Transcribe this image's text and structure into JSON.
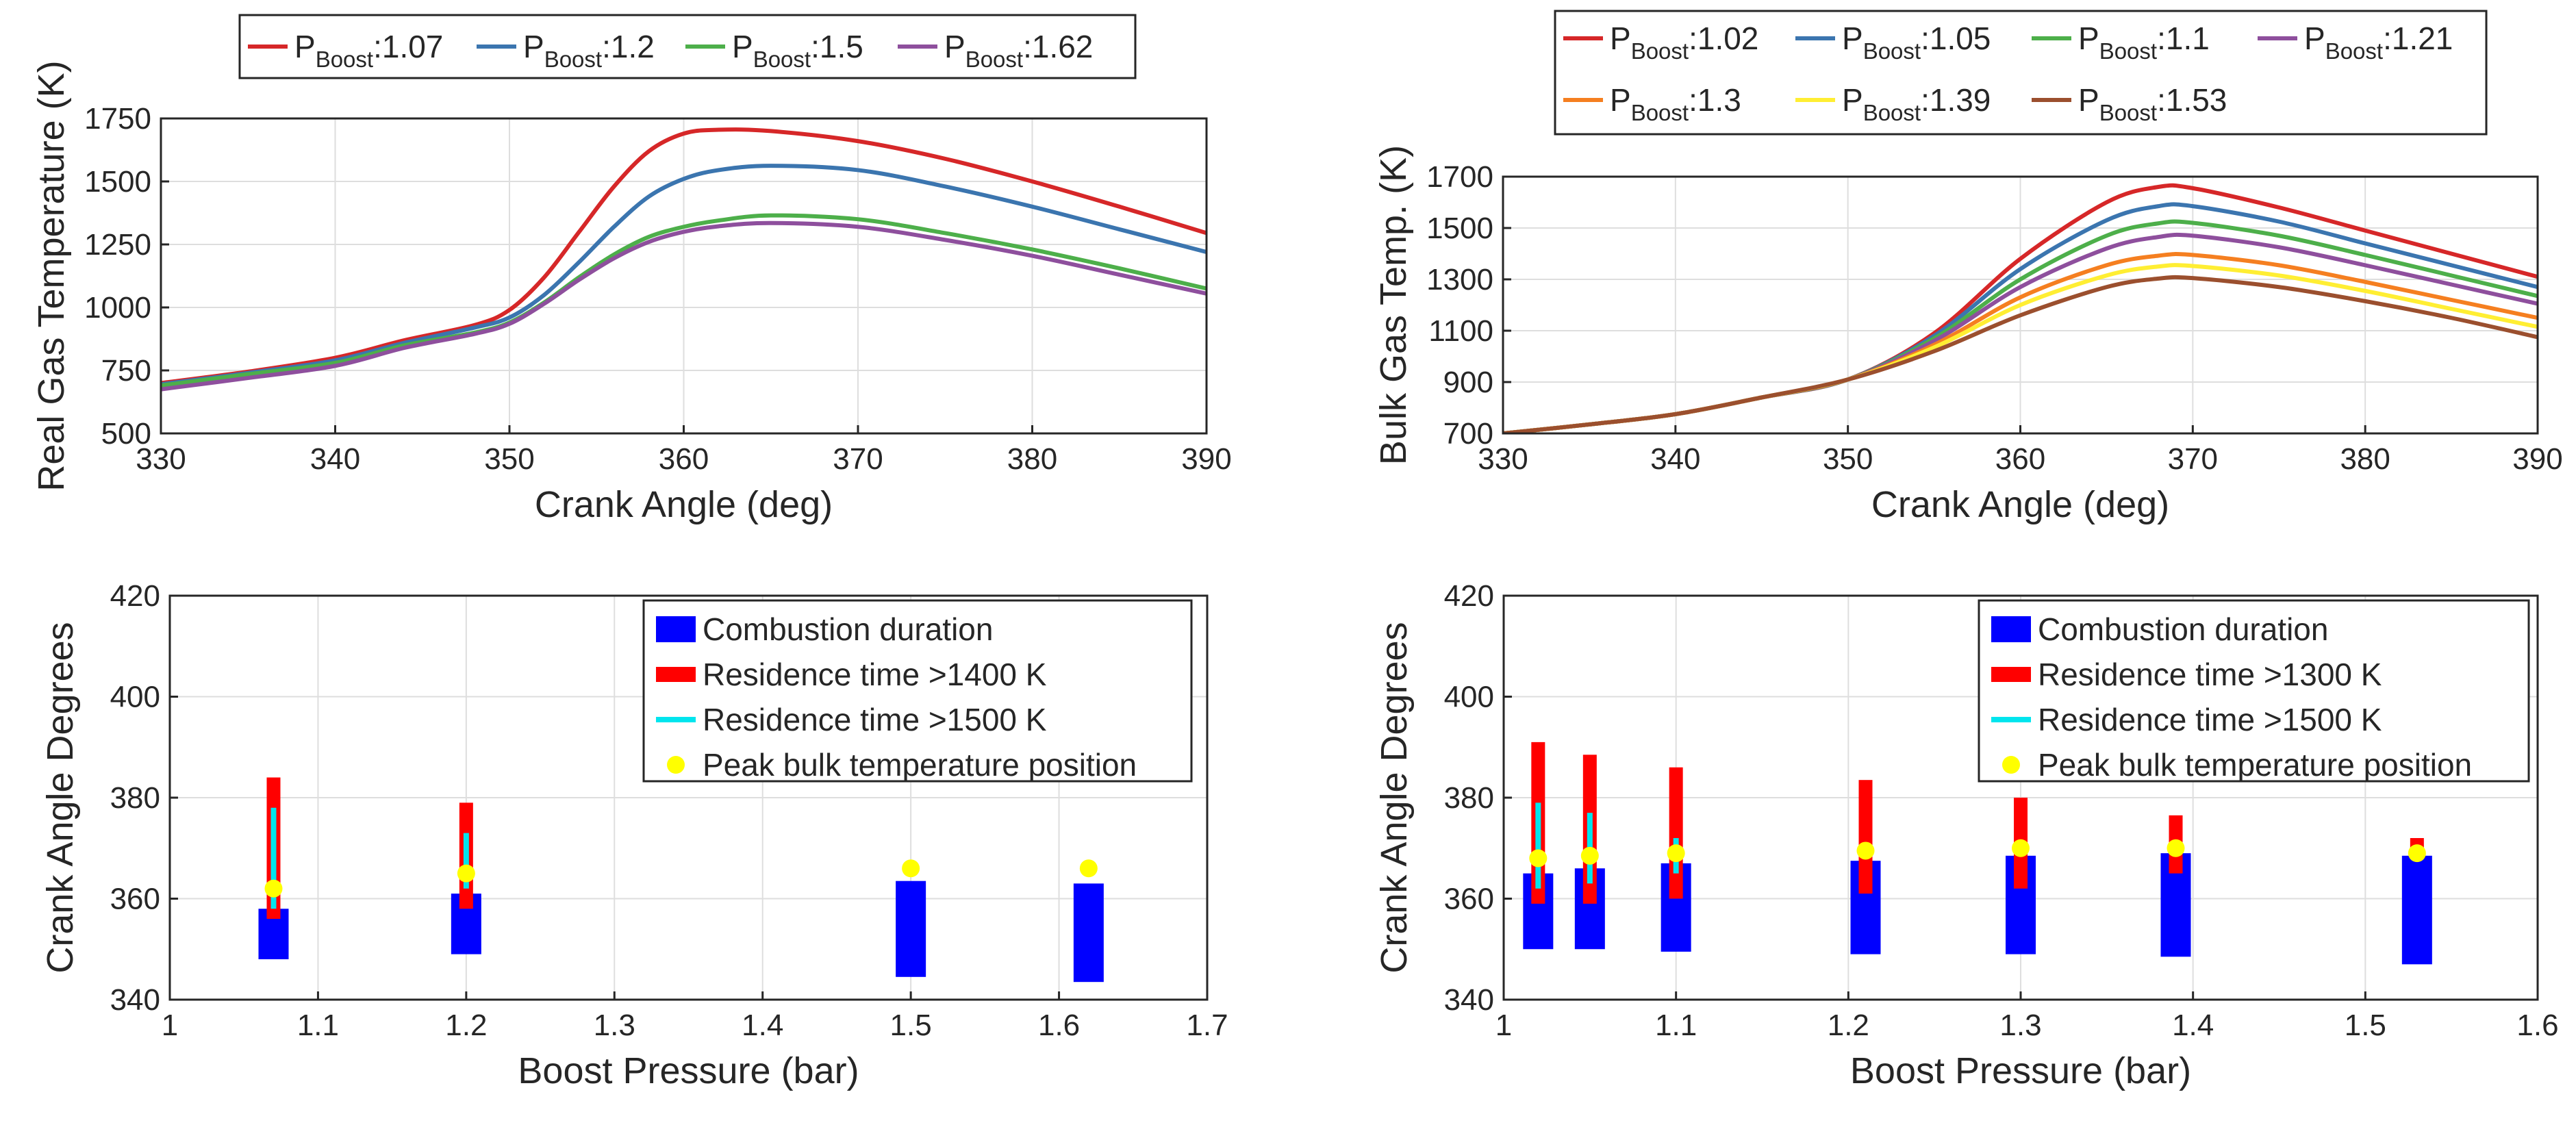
{
  "chart_data": [
    {
      "type": "line",
      "panel": "top-left",
      "xlabel": "Crank Angle (deg)",
      "ylabel": "Real Gas Temperature (K)",
      "xlim": [
        330,
        390
      ],
      "ylim": [
        500,
        1750
      ],
      "xticks": [
        330,
        340,
        350,
        360,
        370,
        380,
        390
      ],
      "yticks": [
        500,
        750,
        1000,
        1250,
        1500,
        1750
      ],
      "grid": true,
      "legend": {
        "placement": "top-outside",
        "prefix": "P",
        "subscript": "Boost"
      },
      "series": [
        {
          "name": ":1.07",
          "color": "#d62728",
          "x": [
            330,
            335,
            340,
            344,
            348,
            350,
            352,
            354,
            356,
            358,
            360,
            362,
            365,
            370,
            375,
            380,
            385,
            390
          ],
          "y": [
            700,
            745,
            800,
            870,
            930,
            990,
            1120,
            1300,
            1480,
            1620,
            1690,
            1705,
            1700,
            1660,
            1590,
            1500,
            1400,
            1295
          ]
        },
        {
          "name": ":1.2",
          "color": "#3b75af",
          "x": [
            330,
            335,
            340,
            344,
            348,
            350,
            352,
            354,
            356,
            358,
            360,
            362,
            365,
            370,
            375,
            380,
            385,
            390
          ],
          "y": [
            695,
            740,
            790,
            860,
            920,
            960,
            1050,
            1180,
            1320,
            1440,
            1510,
            1545,
            1562,
            1545,
            1480,
            1400,
            1310,
            1220
          ]
        },
        {
          "name": ":1.5",
          "color": "#4daf4a",
          "x": [
            330,
            335,
            340,
            344,
            348,
            350,
            352,
            354,
            356,
            358,
            360,
            362,
            365,
            370,
            375,
            380,
            385,
            390
          ],
          "y": [
            690,
            735,
            780,
            850,
            900,
            940,
            1020,
            1120,
            1210,
            1280,
            1320,
            1345,
            1365,
            1350,
            1295,
            1230,
            1155,
            1075
          ]
        },
        {
          "name": ":1.62",
          "color": "#8e4f9d",
          "x": [
            330,
            335,
            340,
            344,
            348,
            350,
            352,
            354,
            356,
            358,
            360,
            362,
            365,
            370,
            375,
            380,
            385,
            390
          ],
          "y": [
            675,
            720,
            768,
            840,
            895,
            935,
            1015,
            1110,
            1195,
            1260,
            1300,
            1322,
            1335,
            1320,
            1268,
            1205,
            1130,
            1055
          ]
        }
      ]
    },
    {
      "type": "line",
      "panel": "top-right",
      "xlabel": "Crank Angle (deg)",
      "ylabel": "Bulk Gas Temp. (K)",
      "xlim": [
        330,
        390
      ],
      "ylim": [
        700,
        1700
      ],
      "xticks": [
        330,
        340,
        350,
        360,
        370,
        380,
        390
      ],
      "yticks": [
        700,
        900,
        1100,
        1300,
        1500,
        1700
      ],
      "grid": true,
      "legend": {
        "placement": "top-outside",
        "prefix": "P",
        "subscript": "Boost"
      },
      "series": [
        {
          "name": ":1.02",
          "color": "#d62728",
          "x": [
            330,
            335,
            340,
            345,
            350,
            355,
            360,
            365,
            368,
            370,
            375,
            380,
            385,
            390
          ],
          "y": [
            700,
            735,
            775,
            840,
            910,
            1090,
            1380,
            1600,
            1660,
            1655,
            1580,
            1490,
            1400,
            1310
          ]
        },
        {
          "name": ":1.05",
          "color": "#3b75af",
          "x": [
            330,
            335,
            340,
            345,
            350,
            355,
            360,
            365,
            368,
            370,
            375,
            380,
            385,
            390
          ],
          "y": [
            700,
            735,
            775,
            840,
            910,
            1080,
            1340,
            1530,
            1585,
            1585,
            1525,
            1440,
            1355,
            1270
          ]
        },
        {
          "name": ":1.1",
          "color": "#4daf4a",
          "x": [
            330,
            335,
            340,
            345,
            350,
            355,
            360,
            365,
            368,
            370,
            375,
            380,
            385,
            390
          ],
          "y": [
            700,
            735,
            775,
            840,
            910,
            1070,
            1300,
            1470,
            1518,
            1520,
            1470,
            1395,
            1315,
            1235
          ]
        },
        {
          "name": ":1.21",
          "color": "#8e4f9d",
          "x": [
            330,
            335,
            340,
            345,
            350,
            355,
            360,
            365,
            368,
            370,
            375,
            380,
            385,
            390
          ],
          "y": [
            700,
            735,
            775,
            840,
            910,
            1060,
            1270,
            1420,
            1465,
            1470,
            1425,
            1355,
            1280,
            1205
          ]
        },
        {
          "name": ":1.3",
          "color": "#f57f20",
          "x": [
            330,
            335,
            340,
            345,
            350,
            355,
            360,
            365,
            368,
            370,
            375,
            380,
            385,
            390
          ],
          "y": [
            700,
            735,
            775,
            840,
            910,
            1045,
            1230,
            1355,
            1392,
            1395,
            1355,
            1290,
            1220,
            1150
          ]
        },
        {
          "name": ":1.39",
          "color": "#ffee33",
          "x": [
            330,
            335,
            340,
            345,
            350,
            355,
            360,
            365,
            368,
            370,
            375,
            380,
            385,
            390
          ],
          "y": [
            700,
            735,
            775,
            840,
            910,
            1035,
            1200,
            1315,
            1350,
            1352,
            1315,
            1255,
            1185,
            1115
          ]
        },
        {
          "name": ":1.53",
          "color": "#9b4f2e",
          "x": [
            330,
            335,
            340,
            345,
            350,
            355,
            360,
            365,
            368,
            370,
            375,
            380,
            385,
            390
          ],
          "y": [
            700,
            735,
            775,
            840,
            910,
            1020,
            1160,
            1270,
            1303,
            1305,
            1270,
            1215,
            1150,
            1075
          ]
        }
      ]
    },
    {
      "type": "bar",
      "panel": "bottom-left",
      "xlabel": "Boost Pressure (bar)",
      "ylabel": "Crank Angle Degrees",
      "xlim": [
        1,
        1.7
      ],
      "ylim": [
        340,
        420
      ],
      "xticks": [
        1,
        1.1,
        1.2,
        1.3,
        1.4,
        1.5,
        1.6,
        1.7
      ],
      "yticks": [
        340,
        360,
        380,
        400,
        420
      ],
      "grid": true,
      "legend": {
        "placement": "top-right",
        "entries": [
          "Combustion duration",
          "Residence time >1400 K",
          "Residence time >1500 K",
          "Peak bulk temperature position"
        ]
      },
      "colors": {
        "combustion": "#0000ff",
        "res_low": "#ff0000",
        "res_high": "#00e5ee",
        "peak": "#ffff00"
      },
      "points": [
        {
          "p": 1.07,
          "combustion": [
            348,
            358
          ],
          "res_low": [
            356,
            384
          ],
          "res_high": [
            358,
            378
          ],
          "peak": 362
        },
        {
          "p": 1.2,
          "combustion": [
            349,
            361
          ],
          "res_low": [
            358,
            379
          ],
          "res_high": [
            362,
            373
          ],
          "peak": 365
        },
        {
          "p": 1.5,
          "combustion": [
            344.5,
            363.5
          ],
          "res_low": null,
          "res_high": null,
          "peak": 366
        },
        {
          "p": 1.62,
          "combustion": [
            343.5,
            363
          ],
          "res_low": null,
          "res_high": null,
          "peak": 366
        }
      ]
    },
    {
      "type": "bar",
      "panel": "bottom-right",
      "xlabel": "Boost Pressure (bar)",
      "ylabel": "Crank Angle Degrees",
      "xlim": [
        1,
        1.6
      ],
      "ylim": [
        340,
        420
      ],
      "xticks": [
        1,
        1.1,
        1.2,
        1.3,
        1.4,
        1.5,
        1.6
      ],
      "yticks": [
        340,
        360,
        380,
        400,
        420
      ],
      "grid": true,
      "legend": {
        "placement": "top-right",
        "entries": [
          "Combustion duration",
          "Residence time >1300 K",
          "Residence time >1500 K",
          "Peak bulk temperature position"
        ]
      },
      "colors": {
        "combustion": "#0000ff",
        "res_low": "#ff0000",
        "res_high": "#00e5ee",
        "peak": "#ffff00"
      },
      "points": [
        {
          "p": 1.02,
          "combustion": [
            350,
            365
          ],
          "res_low": [
            359,
            391
          ],
          "res_high": [
            362,
            379
          ],
          "peak": 368
        },
        {
          "p": 1.05,
          "combustion": [
            350,
            366
          ],
          "res_low": [
            359,
            388.5
          ],
          "res_high": [
            363,
            377
          ],
          "peak": 368.5
        },
        {
          "p": 1.1,
          "combustion": [
            349.5,
            367
          ],
          "res_low": [
            360,
            386
          ],
          "res_high": [
            365,
            372
          ],
          "peak": 369
        },
        {
          "p": 1.21,
          "combustion": [
            349,
            367.5
          ],
          "res_low": [
            361,
            383.5
          ],
          "res_high": null,
          "peak": 369.5
        },
        {
          "p": 1.3,
          "combustion": [
            349,
            368.5
          ],
          "res_low": [
            362,
            380
          ],
          "res_high": null,
          "peak": 370
        },
        {
          "p": 1.39,
          "combustion": [
            348.5,
            369
          ],
          "res_low": [
            365,
            376.5
          ],
          "res_high": null,
          "peak": 370
        },
        {
          "p": 1.53,
          "combustion": [
            347,
            368.5
          ],
          "res_low": [
            368,
            372
          ],
          "res_high": null,
          "peak": 369
        }
      ]
    }
  ]
}
